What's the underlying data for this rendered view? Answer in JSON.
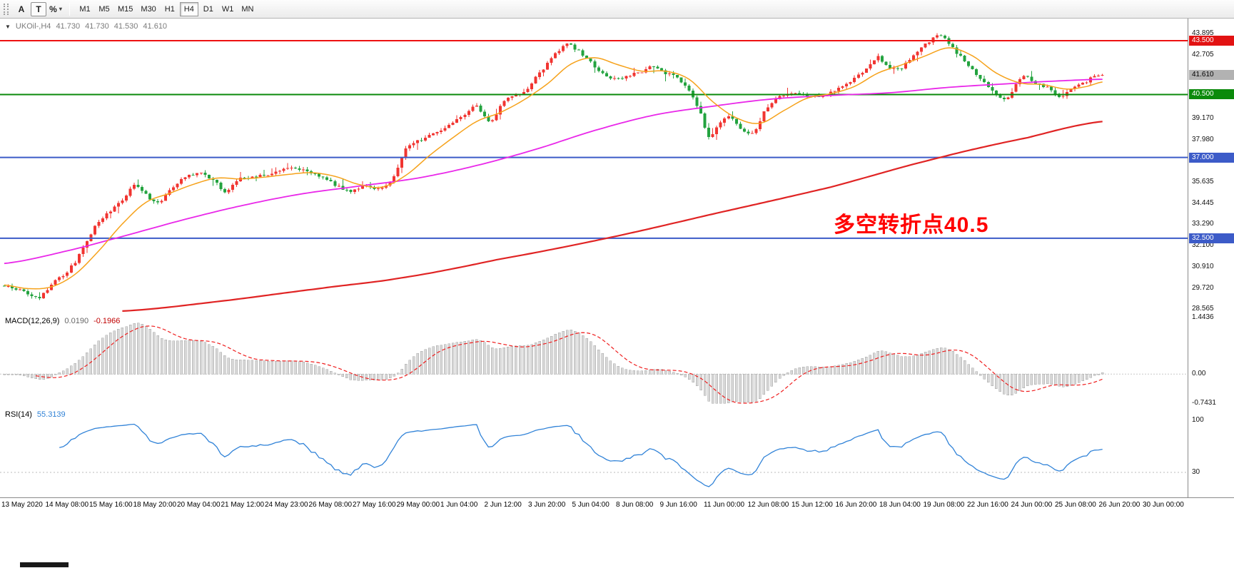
{
  "toolbar": {
    "tool_a": "A",
    "tool_t": "T",
    "tool_percent": "%",
    "caret_glyph": "▾",
    "timeframes": [
      "M1",
      "M5",
      "M15",
      "M30",
      "H1",
      "H4",
      "D1",
      "W1",
      "MN"
    ],
    "active_timeframe": "H4"
  },
  "chart_header": {
    "dropdown_glyph": "▼",
    "symbol_period": "UKOil-,H4",
    "open": "41.730",
    "high": "41.730",
    "low": "41.530",
    "close": "41.610"
  },
  "annotation": {
    "text": "多空转折点40.5",
    "color": "#ff0000"
  },
  "chart_data": {
    "type": "candlestick",
    "symbol": "UKOil-",
    "timeframe": "H4",
    "current_ohlc": {
      "open": 41.73,
      "high": 41.73,
      "low": 41.53,
      "close": 41.61
    },
    "num_candles": 280,
    "colors": {
      "up": "#f13531",
      "down": "#23a33f",
      "ma_fast": "#f6a21b",
      "ma_mid": "#e928e9",
      "ma_slow": "#e02424",
      "hist": "#d8d8d8",
      "hist_border": "#a6a6a6",
      "signal": "#ef1f1f",
      "rsi": "#3183d8"
    },
    "price_axis": {
      "max": 43.895,
      "min": 28.565,
      "ticks": [
        "43.895",
        "42.705",
        "39.170",
        "37.980",
        "35.635",
        "34.445",
        "33.290",
        "32.100",
        "30.910",
        "29.720",
        "28.565"
      ]
    },
    "price_badges": [
      {
        "label": "43.500",
        "price": 43.5,
        "bg": "#e21212",
        "fg": "#ffffff"
      },
      {
        "label": "41.610",
        "price": 41.61,
        "bg": "#b2b2b2",
        "fg": "#000000"
      },
      {
        "label": "40.500",
        "price": 40.5,
        "bg": "#0b8a0b",
        "fg": "#ffffff"
      },
      {
        "label": "37.000",
        "price": 37.0,
        "bg": "#3c5bc8",
        "fg": "#ffffff"
      },
      {
        "label": "32.500",
        "price": 32.5,
        "bg": "#3c5bc8",
        "fg": "#ffffff"
      }
    ],
    "hlines": [
      {
        "price": 43.5,
        "color": "#ee1111",
        "width": 2
      },
      {
        "price": 40.5,
        "color": "#0b8a0b",
        "width": 2
      },
      {
        "price": 37.0,
        "color": "#3c5bc8",
        "width": 2
      },
      {
        "price": 32.5,
        "color": "#3c5bc8",
        "width": 2
      }
    ],
    "close_path": [
      [
        0,
        29.85
      ],
      [
        4,
        29.6
      ],
      [
        7,
        29.3
      ],
      [
        9,
        29.2
      ],
      [
        12,
        29.95
      ],
      [
        15,
        30.45
      ],
      [
        18,
        31.2
      ],
      [
        21,
        32.3
      ],
      [
        23,
        33.2
      ],
      [
        27,
        34.0
      ],
      [
        30,
        34.6
      ],
      [
        33,
        35.4
      ],
      [
        36,
        34.9
      ],
      [
        39,
        34.5
      ],
      [
        43,
        35.4
      ],
      [
        46,
        35.9
      ],
      [
        50,
        36.1
      ],
      [
        54,
        35.6
      ],
      [
        56,
        35.1
      ],
      [
        59,
        35.7
      ],
      [
        63,
        35.95
      ],
      [
        68,
        36.1
      ],
      [
        72,
        36.35
      ],
      [
        77,
        36.25
      ],
      [
        81,
        35.9
      ],
      [
        84,
        35.5
      ],
      [
        88,
        35.1
      ],
      [
        92,
        35.45
      ],
      [
        95,
        35.25
      ],
      [
        98,
        35.6
      ],
      [
        100,
        36.4
      ],
      [
        102,
        37.5
      ],
      [
        105,
        37.9
      ],
      [
        109,
        38.3
      ],
      [
        113,
        38.85
      ],
      [
        117,
        39.4
      ],
      [
        120,
        39.85
      ],
      [
        122,
        39.3
      ],
      [
        124,
        39.05
      ],
      [
        126,
        39.9
      ],
      [
        129,
        40.4
      ],
      [
        132,
        40.6
      ],
      [
        135,
        41.5
      ],
      [
        138,
        42.2
      ],
      [
        141,
        43.0
      ],
      [
        143,
        43.3
      ],
      [
        146,
        42.9
      ],
      [
        149,
        42.3
      ],
      [
        152,
        41.7
      ],
      [
        155,
        41.35
      ],
      [
        158,
        41.5
      ],
      [
        162,
        41.8
      ],
      [
        165,
        42.05
      ],
      [
        168,
        41.7
      ],
      [
        171,
        41.4
      ],
      [
        174,
        40.7
      ],
      [
        177,
        39.4
      ],
      [
        179,
        38.2
      ],
      [
        182,
        38.95
      ],
      [
        184,
        39.3
      ],
      [
        187,
        38.65
      ],
      [
        190,
        38.3
      ],
      [
        193,
        39.5
      ],
      [
        196,
        40.2
      ],
      [
        200,
        40.6
      ],
      [
        204,
        40.45
      ],
      [
        208,
        40.4
      ],
      [
        212,
        40.9
      ],
      [
        216,
        41.4
      ],
      [
        219,
        42.0
      ],
      [
        222,
        42.6
      ],
      [
        224,
        42.1
      ],
      [
        227,
        41.9
      ],
      [
        230,
        42.4
      ],
      [
        233,
        43.1
      ],
      [
        236,
        43.6
      ],
      [
        238,
        43.8
      ],
      [
        240,
        43.3
      ],
      [
        243,
        42.6
      ],
      [
        246,
        41.9
      ],
      [
        249,
        41.2
      ],
      [
        252,
        40.5
      ],
      [
        254,
        40.2
      ],
      [
        257,
        41.0
      ],
      [
        259,
        41.5
      ],
      [
        262,
        41.15
      ],
      [
        265,
        40.9
      ],
      [
        268,
        40.4
      ],
      [
        271,
        40.85
      ],
      [
        274,
        41.1
      ],
      [
        277,
        41.5
      ],
      [
        279,
        41.61
      ]
    ],
    "ma_fast_path": [
      [
        0,
        29.9
      ],
      [
        6,
        29.7
      ],
      [
        12,
        29.8
      ],
      [
        18,
        30.5
      ],
      [
        24,
        31.8
      ],
      [
        30,
        33.3
      ],
      [
        36,
        34.5
      ],
      [
        42,
        35.0
      ],
      [
        48,
        35.5
      ],
      [
        54,
        35.85
      ],
      [
        60,
        35.8
      ],
      [
        66,
        35.9
      ],
      [
        72,
        36.05
      ],
      [
        78,
        36.15
      ],
      [
        84,
        35.95
      ],
      [
        90,
        35.5
      ],
      [
        96,
        35.35
      ],
      [
        102,
        36.0
      ],
      [
        108,
        37.1
      ],
      [
        114,
        38.1
      ],
      [
        120,
        39.0
      ],
      [
        126,
        39.5
      ],
      [
        132,
        40.2
      ],
      [
        138,
        41.1
      ],
      [
        144,
        42.2
      ],
      [
        150,
        42.55
      ],
      [
        156,
        42.15
      ],
      [
        162,
        41.8
      ],
      [
        168,
        41.8
      ],
      [
        174,
        41.35
      ],
      [
        180,
        40.1
      ],
      [
        186,
        39.2
      ],
      [
        192,
        38.9
      ],
      [
        198,
        39.6
      ],
      [
        204,
        40.3
      ],
      [
        210,
        40.55
      ],
      [
        216,
        40.95
      ],
      [
        222,
        41.7
      ],
      [
        228,
        42.15
      ],
      [
        234,
        42.65
      ],
      [
        240,
        43.1
      ],
      [
        246,
        42.65
      ],
      [
        252,
        41.7
      ],
      [
        258,
        41.15
      ],
      [
        264,
        41.05
      ],
      [
        270,
        40.8
      ],
      [
        275,
        40.95
      ],
      [
        279,
        41.2
      ]
    ],
    "ma_mid_path": [
      [
        0,
        31.1
      ],
      [
        15,
        31.75
      ],
      [
        30,
        32.6
      ],
      [
        45,
        33.5
      ],
      [
        60,
        34.3
      ],
      [
        75,
        34.95
      ],
      [
        90,
        35.4
      ],
      [
        105,
        35.85
      ],
      [
        120,
        36.55
      ],
      [
        135,
        37.45
      ],
      [
        150,
        38.5
      ],
      [
        165,
        39.35
      ],
      [
        180,
        39.85
      ],
      [
        195,
        40.25
      ],
      [
        210,
        40.45
      ],
      [
        225,
        40.6
      ],
      [
        240,
        40.9
      ],
      [
        255,
        41.1
      ],
      [
        267,
        41.25
      ],
      [
        279,
        41.35
      ]
    ],
    "ma_slow_path": [
      [
        30,
        28.45
      ],
      [
        55,
        29.0
      ],
      [
        80,
        29.7
      ],
      [
        101,
        30.3
      ],
      [
        125,
        31.3
      ],
      [
        153,
        32.5
      ],
      [
        181,
        33.9
      ],
      [
        210,
        35.35
      ],
      [
        236,
        36.9
      ],
      [
        260,
        38.1
      ],
      [
        279,
        39.0
      ]
    ],
    "x_labels": [
      "13 May 2020",
      "14 May 08:00",
      "15 May 16:00",
      "18 May 20:00",
      "20 May 04:00",
      "21 May 12:00",
      "24 May 23:00",
      "26 May 08:00",
      "27 May 16:00",
      "29 May 00:00",
      "1 Jun 04:00",
      "2 Jun 12:00",
      "3 Jun 20:00",
      "5 Jun 04:00",
      "8 Jun 08:00",
      "9 Jun 16:00",
      "11 Jun 00:00",
      "12 Jun 08:00",
      "15 Jun 12:00",
      "16 Jun 20:00",
      "18 Jun 04:00",
      "19 Jun 08:00",
      "22 Jun 16:00",
      "24 Jun 00:00",
      "25 Jun 08:00",
      "26 Jun 20:00",
      "30 Jun 00:00"
    ],
    "macd": {
      "name": "MACD(12,26,9)",
      "value_main": "0.0190",
      "value_signal": "-0.1966",
      "fast": 12,
      "slow": 26,
      "signal": 9,
      "axis": {
        "max": 1.4436,
        "min": -0.7431,
        "ticks": [
          "1.4436",
          "0.00",
          "-0.7431"
        ]
      }
    },
    "rsi": {
      "name": "RSI(14)",
      "value": "55.3139",
      "period": 14,
      "axis": {
        "max": 100,
        "min": 0,
        "ticks": [
          "100",
          "30"
        ],
        "level": 30
      }
    }
  }
}
